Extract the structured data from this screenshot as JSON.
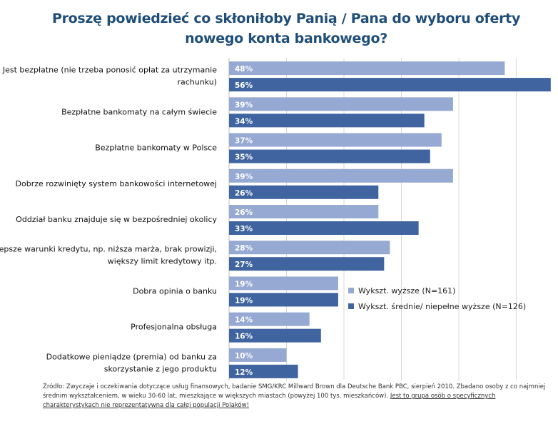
{
  "title_line1": "Proszę powiedzieć co skłoniłoby Panią / Pana do wyboru oferty",
  "title_line2": "nowego konta bankowego?",
  "chart_data": {
    "type": "bar",
    "orientation": "horizontal",
    "categories": [
      [
        "Jest bezpłatne (nie trzeba ponosić opłat za utrzymanie",
        "rachunku)"
      ],
      [
        "Bezpłatne bankomaty na całym świecie"
      ],
      [
        "Bezpłatne bankomaty w Polsce"
      ],
      [
        "Dobrze rozwinięty system bankowości internetowej"
      ],
      [
        "Oddział banku znajduje się w bezpośredniej okolicy"
      ],
      [
        "Lepsze warunki kredytu, np. niższa marża, brak prowizji,",
        "większy limit kredytowy itp."
      ],
      [
        "Dobra opinia o banku"
      ],
      [
        "Profesjonalna obsługa"
      ],
      [
        "Dodatkowe pieniądze (premia) od banku za",
        "skorzystanie z jego produktu"
      ]
    ],
    "series": [
      {
        "name": "Wykszt. wyższe (N=161)",
        "color": "#95a9d3",
        "values": [
          48,
          39,
          37,
          39,
          26,
          28,
          19,
          14,
          10
        ],
        "labels": [
          "48%",
          "39%",
          "37%",
          "39%",
          "26%",
          "28%",
          "19%",
          "14%",
          "10%"
        ]
      },
      {
        "name": "Wykszt. średnie/ niepełne wyższe (N=126)",
        "color": "#3f64a0",
        "values": [
          56,
          34,
          35,
          26,
          33,
          27,
          19,
          16,
          12
        ],
        "labels": [
          "56%",
          "34%",
          "35%",
          "26%",
          "33%",
          "27%",
          "19%",
          "16%",
          "12%"
        ]
      }
    ],
    "xlim": [
      0,
      55
    ],
    "grid": true,
    "legend_position": "right"
  },
  "source": {
    "plain": "Źródło: Zwyczaje i oczekiwania dotyczące usług finansowych, badanie SMG/KRC Millward Brown dla Deutsche Bank PBC, sierpień 2010. Zbadano osoby z co najmniej średnim wykształceniem, w wieku 30-60 lat, mieszkające w większych miastach (powyżej 100 tys. mieszkańców).",
    "underlined": "Jest to grupa osób o specyficznych charakterystykach nie reprezentatywna dla całej populacji Polaków!"
  }
}
